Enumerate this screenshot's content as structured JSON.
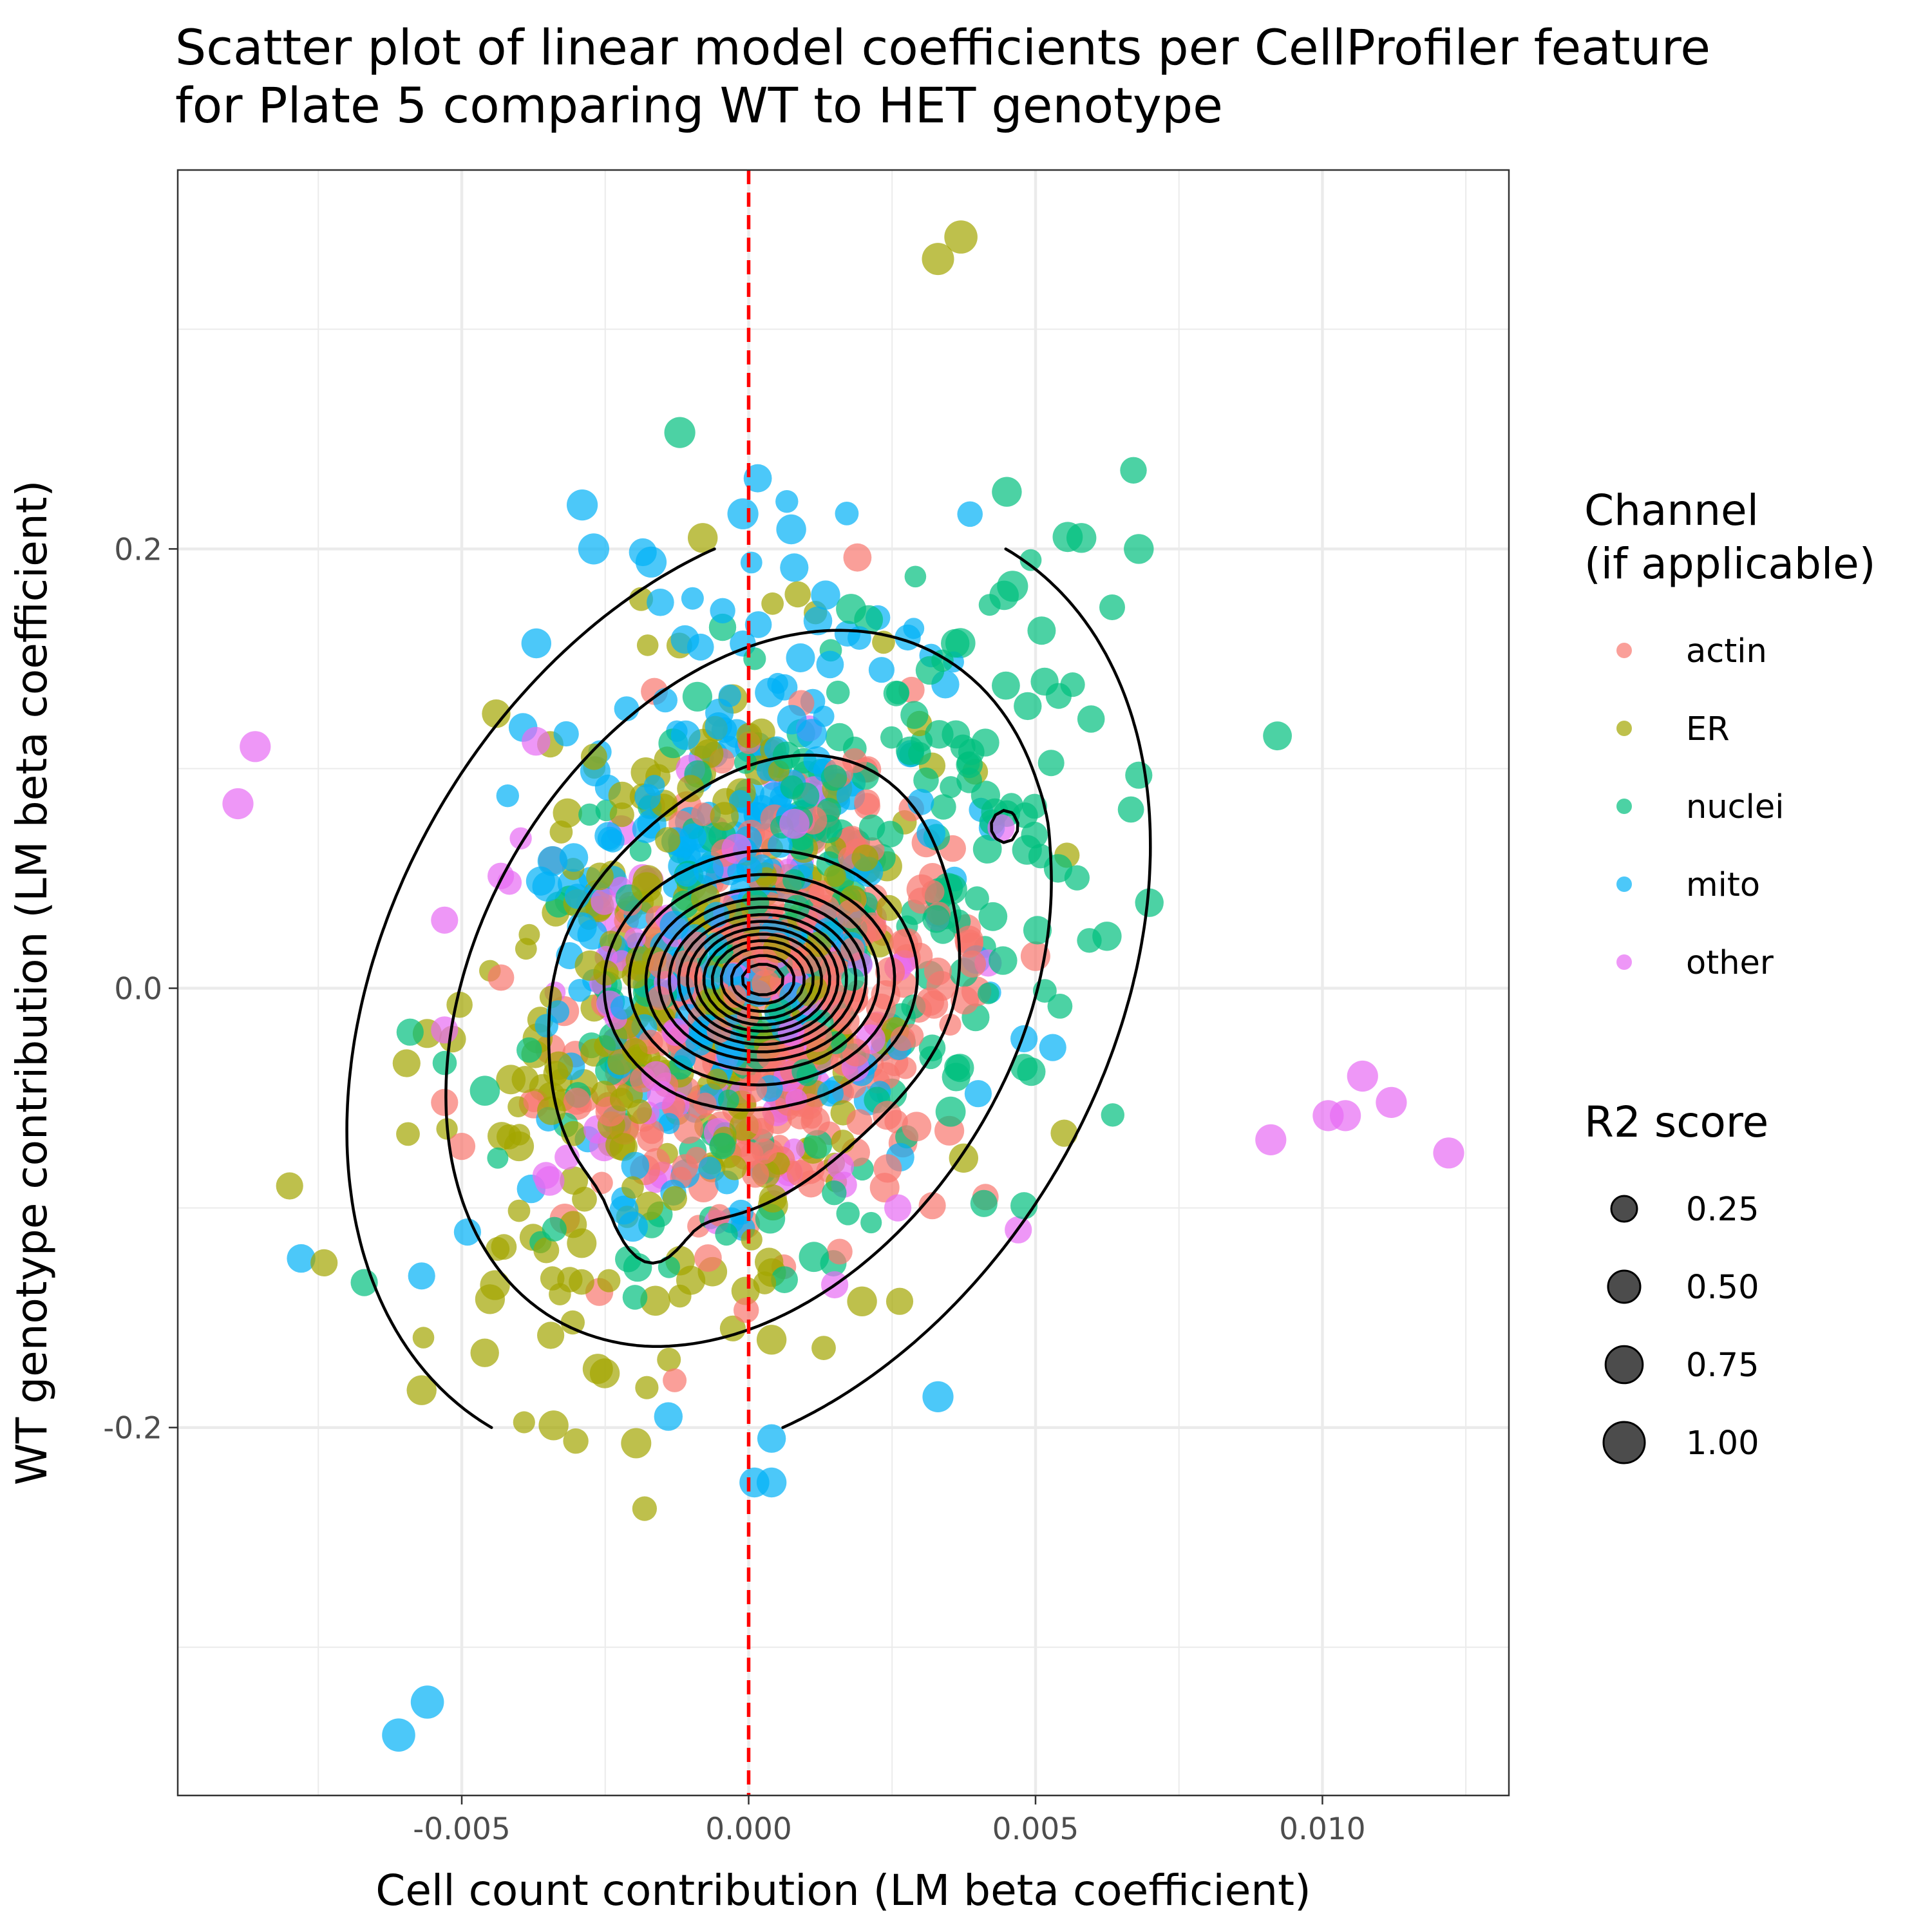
{
  "chart_data": {
    "type": "scatter",
    "title": "Scatter plot of linear model coefficients per CellProfiler feature\n for Plate 5 comparing WT to HET genotype",
    "xlabel": "Cell count contribution (LM beta coefficient)",
    "ylabel": "WT genotype contribution (LM beta coefficient)",
    "xlim": [
      -0.00995,
      0.01325
    ],
    "ylim": [
      -0.3675,
      0.3725
    ],
    "x_ticks": [
      -0.005,
      0.0,
      0.005,
      0.01
    ],
    "x_tick_labels": [
      "-0.005",
      "0.000",
      "0.005",
      "0.010"
    ],
    "y_ticks": [
      -0.2,
      0.0,
      0.2
    ],
    "y_tick_labels": [
      "-0.2",
      "0.0",
      "0.2"
    ],
    "grid": true,
    "vline": {
      "x": 0.0,
      "color": "#ff0000",
      "style": "dashed"
    },
    "density_contours": true,
    "color_legend": {
      "title": "Channel\n(if applicable)",
      "entries": [
        {
          "name": "actin",
          "color": "#F8766D"
        },
        {
          "name": "ER",
          "color": "#A3A500"
        },
        {
          "name": "nuclei",
          "color": "#00BF7D"
        },
        {
          "name": "mito",
          "color": "#00B0F6"
        },
        {
          "name": "other",
          "color": "#E76BF3"
        }
      ]
    },
    "size_legend": {
      "title": "R2 score",
      "entries": [
        {
          "label": "0.25",
          "value": 0.25
        },
        {
          "label": "0.50",
          "value": 0.5
        },
        {
          "label": "0.75",
          "value": 0.75
        },
        {
          "label": "1.00",
          "value": 1.0
        }
      ]
    },
    "legend_position": "right",
    "series": [
      {
        "name": "other",
        "points": [
          [
            -0.0086,
            0.11,
            0.45
          ],
          [
            -0.0089,
            0.084,
            0.45
          ],
          [
            0.0091,
            -0.069,
            0.45
          ],
          [
            0.0101,
            -0.058,
            0.45
          ],
          [
            0.0104,
            -0.058,
            0.45
          ],
          [
            0.0107,
            -0.04,
            0.45
          ],
          [
            0.0112,
            -0.052,
            0.45
          ],
          [
            0.0122,
            -0.075,
            0.45
          ],
          [
            0.0047,
            -0.11,
            0.3
          ],
          [
            0.0026,
            -0.1,
            0.3
          ],
          [
            0.0016,
            -0.081,
            0.3
          ],
          [
            0.0015,
            -0.135,
            0.3
          ],
          [
            -0.0053,
            0.031,
            0.3
          ],
          [
            -0.0053,
            -0.019,
            0.3
          ],
          [
            0.0044,
            0.073,
            0.3
          ]
        ]
      },
      {
        "name": "mito",
        "points": [
          [
            -0.0061,
            -0.34,
            0.55
          ],
          [
            -0.0056,
            -0.325,
            0.55
          ],
          [
            -0.0029,
            0.22,
            0.45
          ],
          [
            -0.0027,
            0.2,
            0.45
          ],
          [
            -0.0017,
            0.194,
            0.45
          ],
          [
            -0.0001,
            0.216,
            0.45
          ],
          [
            0.0033,
            -0.186,
            0.45
          ],
          [
            -0.0037,
            0.157,
            0.4
          ],
          [
            0.0001,
            -0.225,
            0.4
          ],
          [
            0.0004,
            -0.225,
            0.4
          ],
          [
            -0.0078,
            -0.123,
            0.35
          ],
          [
            0.0004,
            -0.205,
            0.35
          ],
          [
            -0.0014,
            -0.195,
            0.35
          ],
          [
            0.004,
            -0.048,
            0.3
          ],
          [
            0.0048,
            -0.023,
            0.3
          ],
          [
            0.0053,
            -0.027,
            0.3
          ],
          [
            -0.0057,
            -0.131,
            0.3
          ],
          [
            -0.0049,
            -0.111,
            0.3
          ]
        ]
      },
      {
        "name": "nuclei",
        "points": [
          [
            -0.0012,
            0.253,
            0.45
          ],
          [
            0.0046,
            0.183,
            0.45
          ],
          [
            0.0058,
            0.205,
            0.4
          ],
          [
            0.0068,
            0.2,
            0.4
          ],
          [
            0.0045,
            0.226,
            0.4
          ],
          [
            0.0041,
            -0.098,
            0.3
          ],
          [
            0.0048,
            -0.099,
            0.3
          ],
          [
            -0.0067,
            -0.134,
            0.3
          ],
          [
            -0.0059,
            -0.02,
            0.3
          ],
          [
            0.0068,
            0.097,
            0.3
          ],
          [
            0.0048,
            -0.036,
            0.3
          ],
          [
            0.0036,
            0.157,
            0.35
          ]
        ]
      },
      {
        "name": "ER",
        "points": [
          [
            0.0037,
            0.342,
            0.55
          ],
          [
            0.0033,
            0.332,
            0.5
          ],
          [
            -0.0057,
            -0.183,
            0.4
          ],
          [
            -0.0034,
            -0.199,
            0.4
          ],
          [
            -0.008,
            -0.09,
            0.3
          ],
          [
            -0.0074,
            -0.125,
            0.3
          ],
          [
            -0.0046,
            -0.166,
            0.35
          ],
          [
            0.0055,
            -0.066,
            0.3
          ],
          [
            -0.0044,
            0.125,
            0.35
          ],
          [
            -0.0008,
            0.205,
            0.4
          ],
          [
            0.0004,
            -0.16,
            0.4
          ]
        ]
      },
      {
        "name": "actin",
        "points": [
          [
            -0.0053,
            -0.052,
            0.3
          ],
          [
            -0.005,
            -0.072,
            0.3
          ],
          [
            0.0032,
            -0.099,
            0.3
          ],
          [
            0.0039,
            0.011,
            0.3
          ],
          [
            0.0003,
            0.002,
            0.35
          ]
        ]
      }
    ]
  }
}
